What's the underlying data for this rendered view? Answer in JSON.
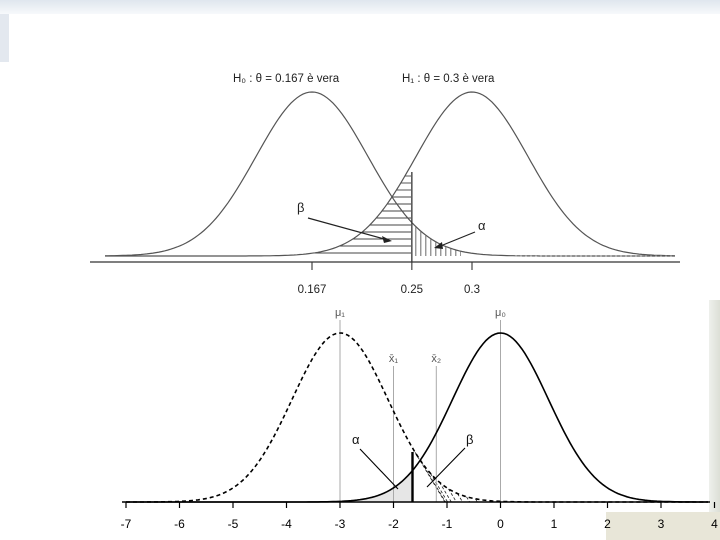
{
  "top_panel": {
    "h0_label": "H₀ : θ = 0.167 è vera",
    "h1_label": "H₁ : θ = 0.3 è vera",
    "beta_label": "β",
    "alpha_label": "α",
    "ticks": [
      {
        "value": 0.167,
        "label": "0.167"
      },
      {
        "value": 0.25,
        "label": "0.25"
      },
      {
        "value": 0.3,
        "label": "0.3"
      }
    ],
    "h0_mean": 0.167,
    "h1_mean": 0.3,
    "critical_value": 0.25,
    "colors": {
      "curve": "#555555",
      "axis": "#333333"
    }
  },
  "bottom_panel": {
    "mu1_label": "μ₁",
    "mu0_label": "μ₀",
    "xbar1_label": "x̄₁",
    "xbar2_label": "x̄₂",
    "alpha_label": "α",
    "beta_label": "β",
    "mu1_value": -3,
    "mu0_value": 0,
    "xbar1_value": -2,
    "xbar2_value": -1.2,
    "critical_value": -1.645,
    "x_ticks": [
      "-7",
      "-6",
      "-5",
      "-4",
      "-3",
      "-2",
      "-1",
      "0",
      "1",
      "2",
      "3",
      "4"
    ],
    "x_range": [
      -7,
      4
    ],
    "colors": {
      "curve": "#000000",
      "guide": "#aaaaaa",
      "shade": "#e6e6e6"
    }
  }
}
